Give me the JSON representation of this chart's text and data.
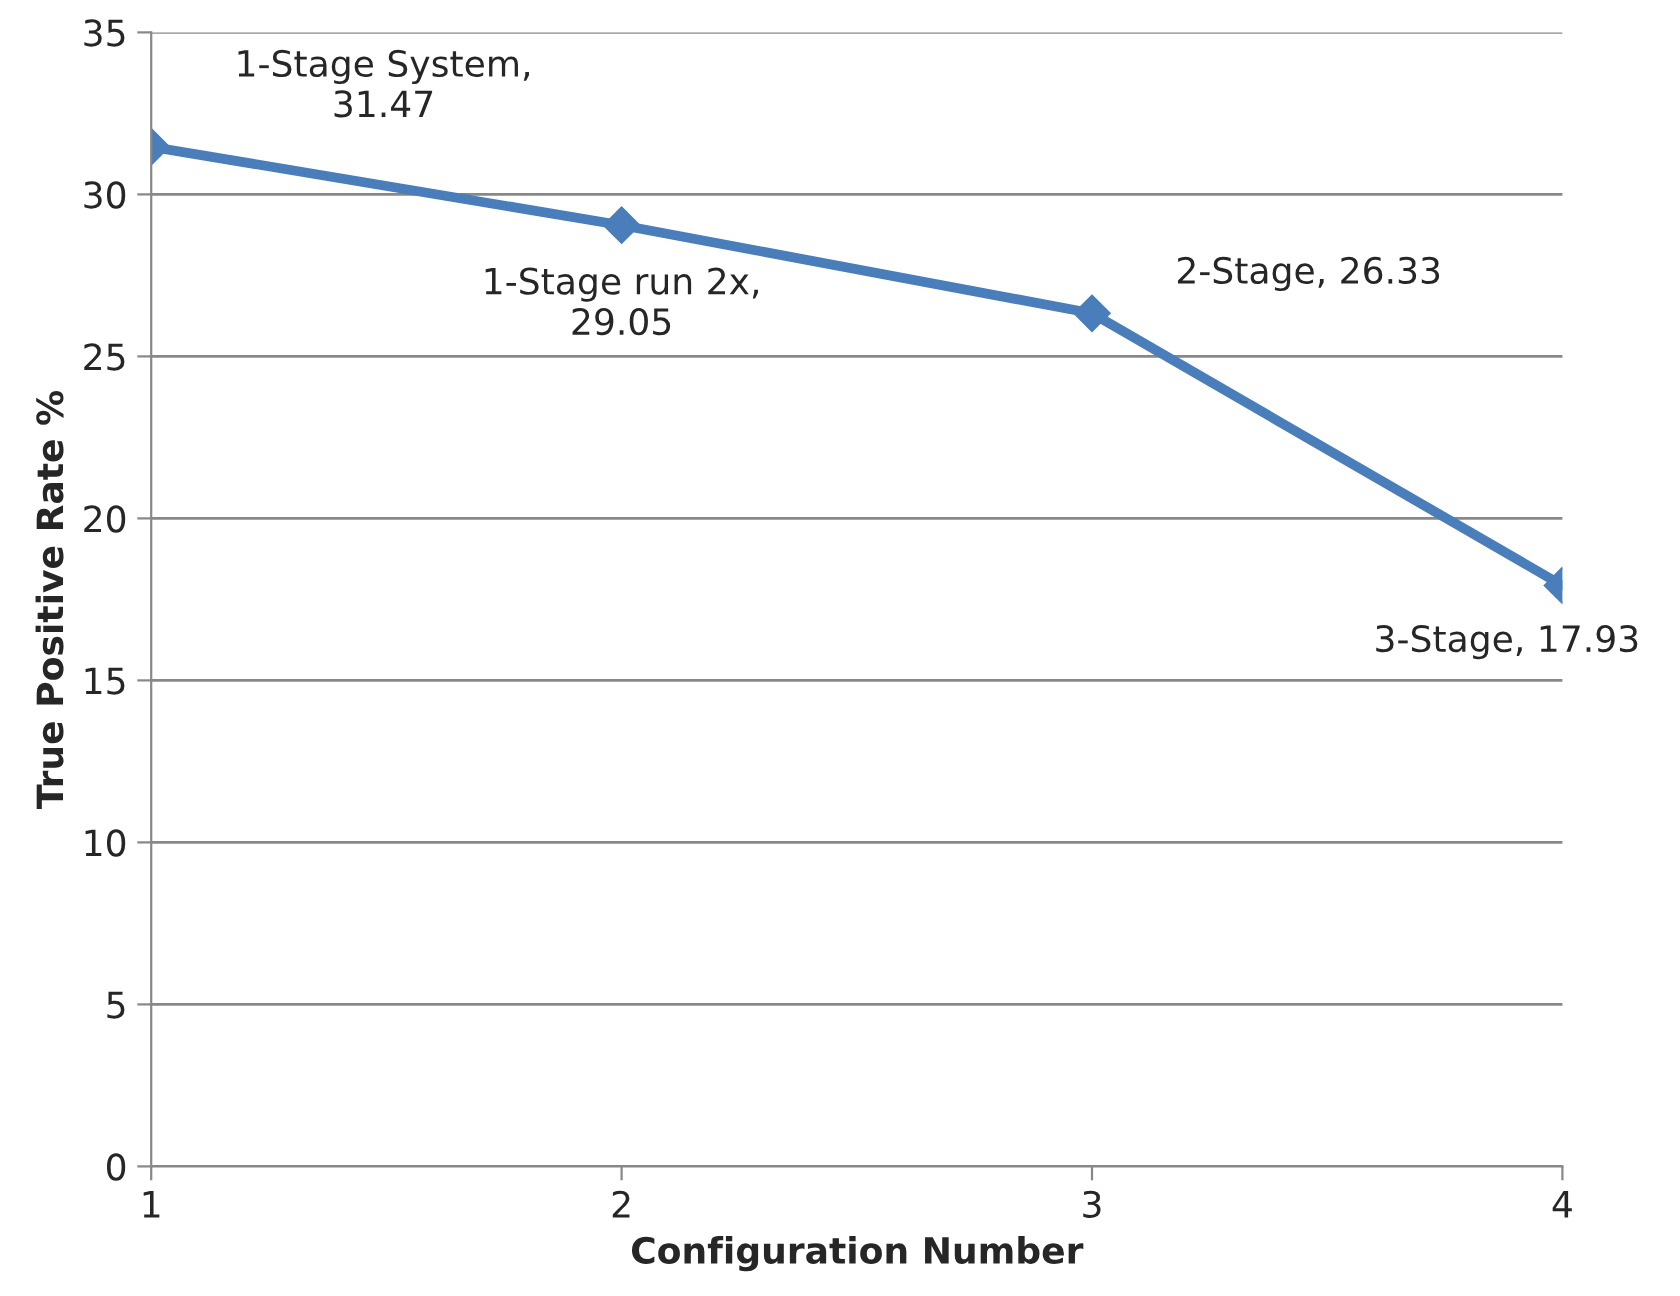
{
  "chart_data": {
    "type": "line",
    "xlabel": "Configuration Number",
    "ylabel": "True Positive Rate %",
    "x": [
      1,
      2,
      3,
      4
    ],
    "series": [
      {
        "color": "#4a7ebb",
        "values": [
          31.47,
          29.05,
          26.33,
          17.93
        ]
      }
    ],
    "xlim": [
      1,
      4
    ],
    "xticks": [
      1,
      2,
      3,
      4
    ],
    "ylim": [
      0,
      35
    ],
    "yticks": [
      0,
      5,
      10,
      15,
      20,
      25,
      30,
      35
    ],
    "grid": "y",
    "marker": "diamond",
    "line_style": "solid",
    "annotations": [
      {
        "text": "1-Stage System,\n31.47",
        "x": 1,
        "y": 31.47
      },
      {
        "text": "1-Stage run 2x,\n29.05",
        "x": 2,
        "y": 29.05
      },
      {
        "text": "2-Stage, 26.33",
        "x": 3,
        "y": 26.33
      },
      {
        "text": "3-Stage, 17.93",
        "x": 4,
        "y": 17.93
      }
    ]
  }
}
